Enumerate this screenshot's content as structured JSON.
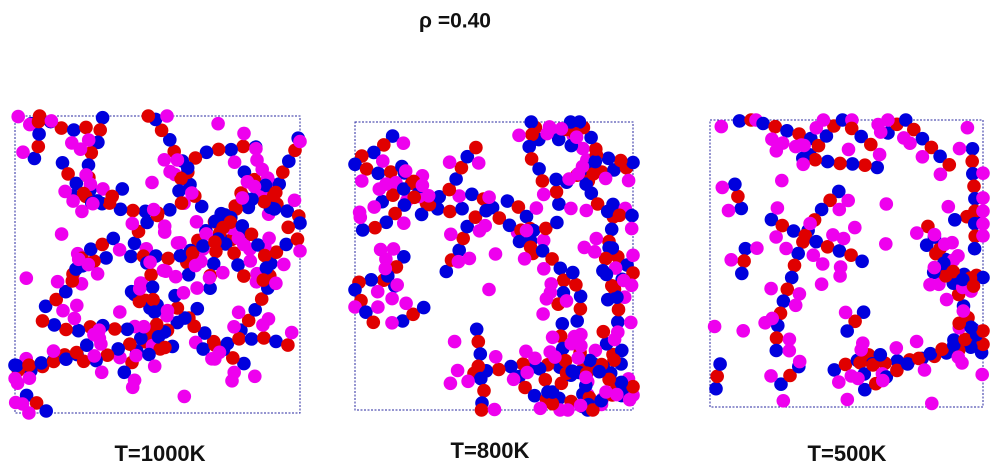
{
  "title": "ρ =0.40",
  "panels": [
    {
      "label": "T=1000K"
    },
    {
      "label": "T=800K"
    },
    {
      "label": "T=500K"
    }
  ]
}
